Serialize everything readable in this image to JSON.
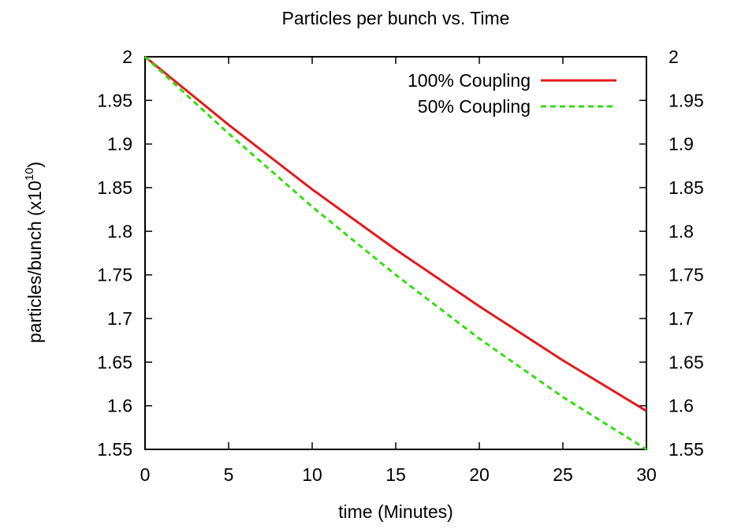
{
  "chart_data": {
    "type": "line",
    "title": "Particles per bunch vs. Time",
    "xlabel": "time (Minutes)",
    "ylabel": "particles/bunch (x10",
    "ylabel_superscript": "10",
    "ylabel_suffix": ")",
    "xlim": [
      0,
      30
    ],
    "ylim": [
      1.55,
      2.0
    ],
    "x_ticks": [
      "0",
      "5",
      "10",
      "15",
      "20",
      "25",
      "30"
    ],
    "y_ticks": [
      "1.55",
      "1.6",
      "1.65",
      "1.7",
      "1.75",
      "1.8",
      "1.85",
      "1.9",
      "1.95",
      "2"
    ],
    "y2_ticks": [
      "1.55",
      "1.6",
      "1.65",
      "1.7",
      "1.75",
      "1.8",
      "1.85",
      "1.9",
      "1.95",
      "2"
    ],
    "grid": false,
    "legend_position": "top-right",
    "series": [
      {
        "name": "100% Coupling",
        "color": "#e41a1c",
        "style": "solid",
        "x": [
          0,
          5,
          10,
          15,
          20,
          25,
          30
        ],
        "y": [
          2.0,
          1.922,
          1.848,
          1.779,
          1.714,
          1.652,
          1.594
        ]
      },
      {
        "name": "50% Coupling",
        "color": "#33dd11",
        "style": "dashed",
        "x": [
          0,
          5,
          10,
          15,
          20,
          25,
          30
        ],
        "y": [
          2.0,
          1.912,
          1.828,
          1.75,
          1.677,
          1.61,
          1.55
        ]
      }
    ]
  }
}
